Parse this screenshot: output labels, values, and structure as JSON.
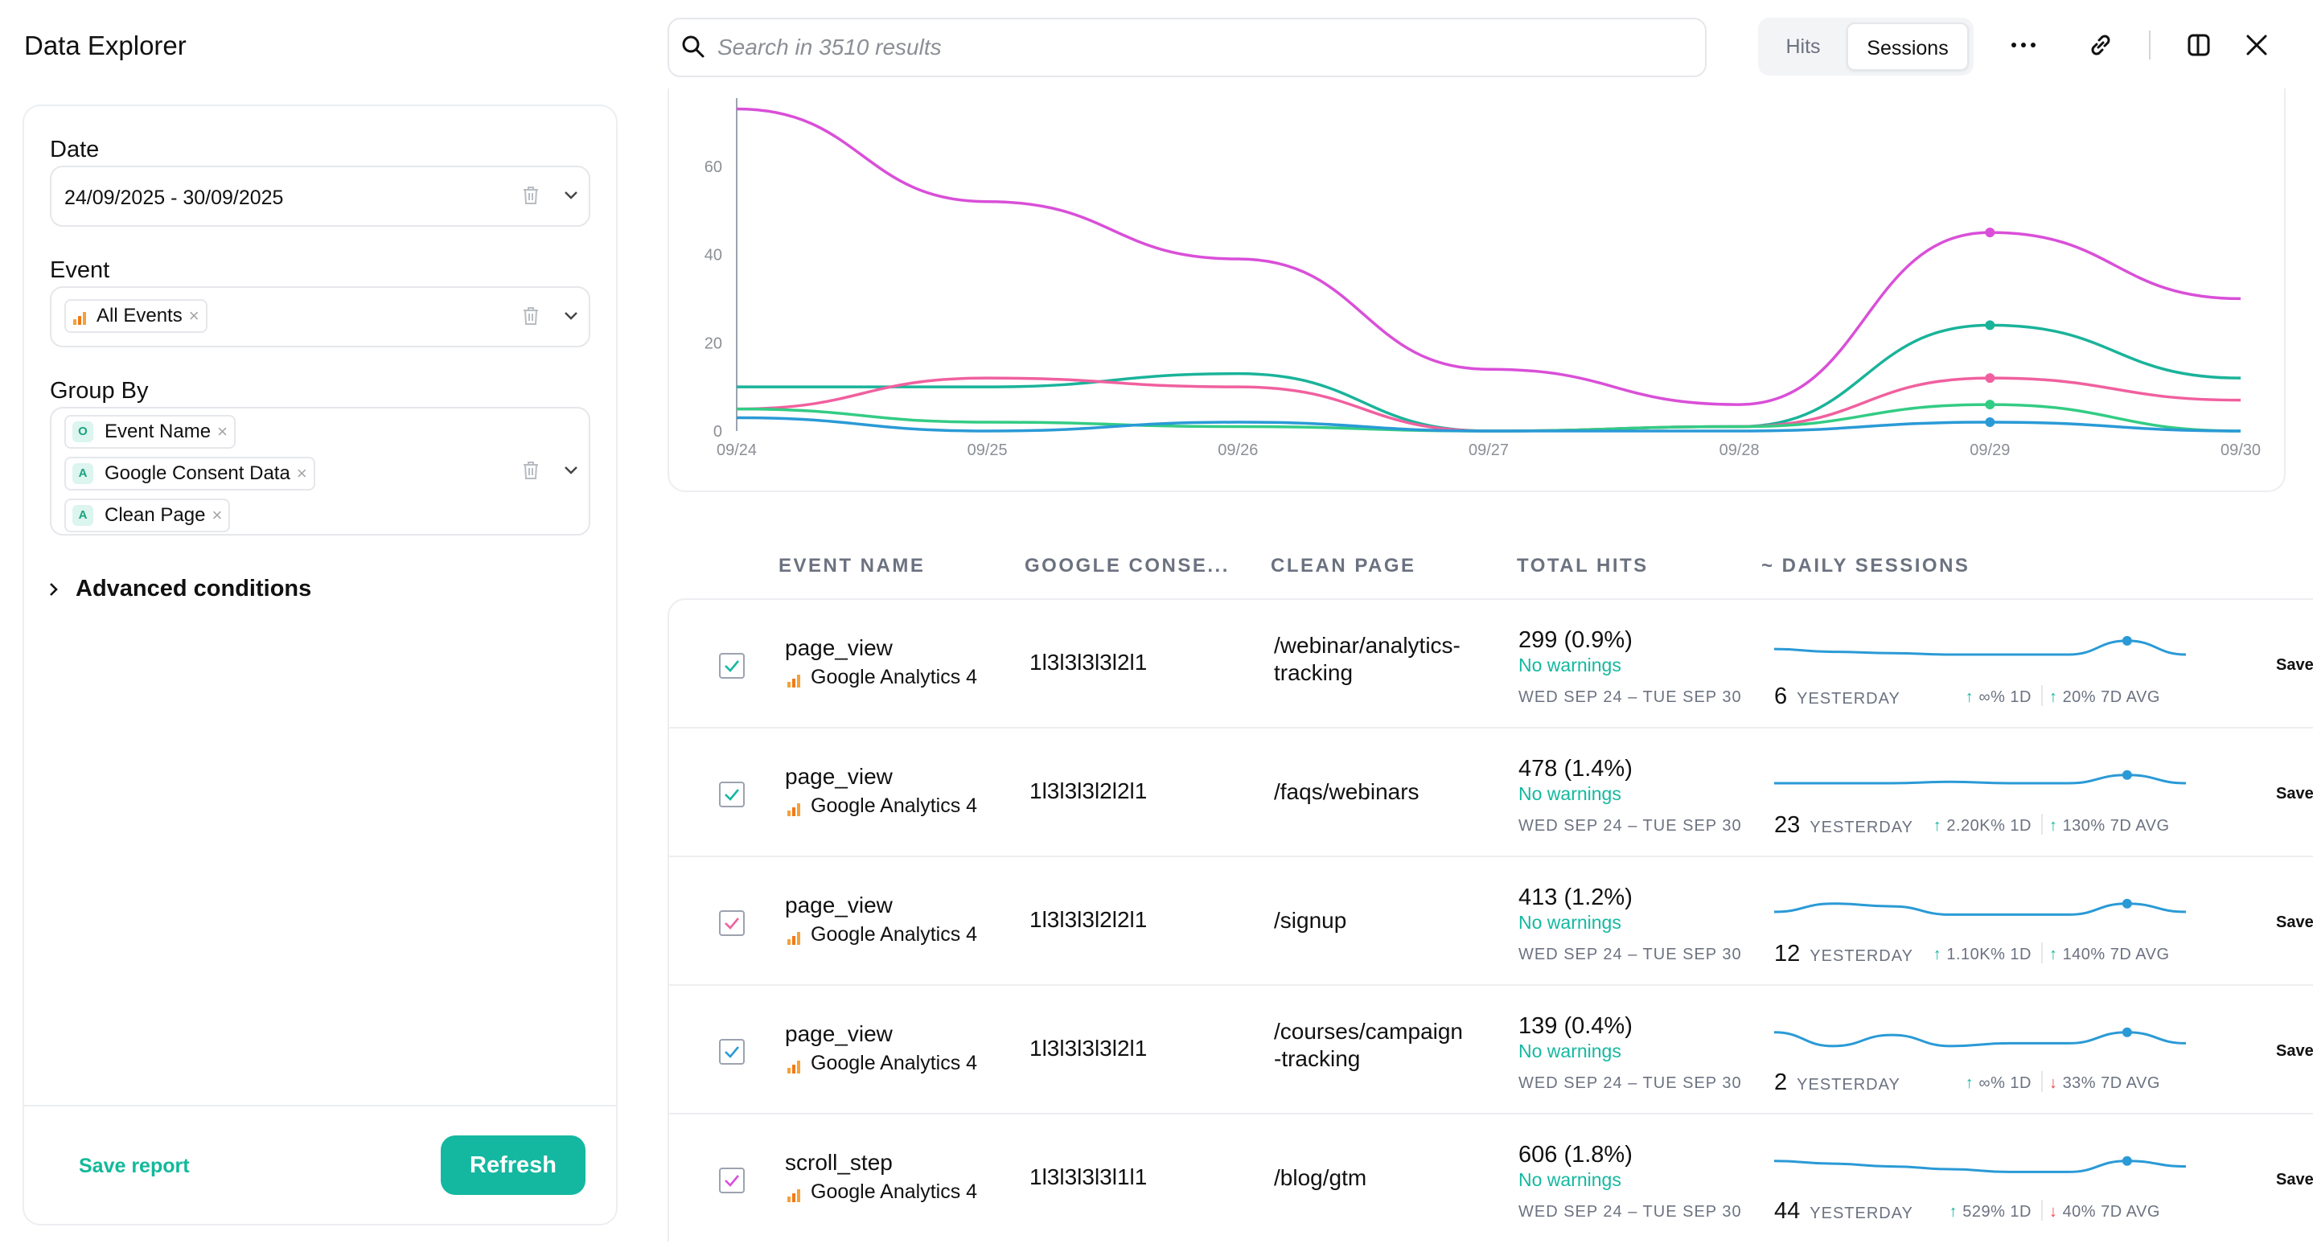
{
  "app": {
    "title": "Data Explorer"
  },
  "search": {
    "placeholder": "Search in 3510 results"
  },
  "view_toggle": {
    "options": [
      "Hits",
      "Sessions"
    ],
    "selected": "Sessions"
  },
  "header_icons": [
    "more-horizontal-icon",
    "link-icon",
    "split-panel-icon",
    "close-icon"
  ],
  "sidebar": {
    "date": {
      "label": "Date",
      "value": "24/09/2025 - 30/09/2025"
    },
    "event": {
      "label": "Event",
      "chips": [
        {
          "label": "All Events",
          "icon": "ga-bars-icon"
        }
      ]
    },
    "group_by": {
      "label": "Group By",
      "chips": [
        {
          "badge": "O",
          "label": "Event Name"
        },
        {
          "badge": "A",
          "label": "Google Consent Data"
        },
        {
          "badge": "A",
          "label": "Clean Page"
        }
      ]
    },
    "advanced": {
      "label": "Advanced conditions"
    },
    "save_report": "Save report",
    "refresh": "Refresh"
  },
  "chart_data": {
    "type": "line",
    "x": [
      "09/24",
      "09/25",
      "09/26",
      "09/27",
      "09/28",
      "09/29",
      "09/30"
    ],
    "ylim": [
      0,
      74
    ],
    "yticks": [
      0,
      20,
      40,
      60
    ],
    "grid": false,
    "series": [
      {
        "color": "#d94fd8",
        "values": [
          73,
          52,
          39,
          14,
          6,
          45,
          30
        ]
      },
      {
        "color": "#1ab39a",
        "values": [
          10,
          10,
          13,
          0,
          1,
          24,
          12
        ]
      },
      {
        "color": "#f0609f",
        "values": [
          5,
          12,
          10,
          0,
          1,
          12,
          7
        ]
      },
      {
        "color": "#33cc84",
        "values": [
          5,
          2,
          1,
          0,
          1,
          6,
          0
        ]
      },
      {
        "color": "#2a9ad6",
        "values": [
          3,
          0,
          2,
          0,
          0,
          2,
          0
        ]
      }
    ]
  },
  "table": {
    "headers": [
      "EVENT NAME",
      "GOOGLE CONSE...",
      "CLEAN PAGE",
      "TOTAL HITS",
      "~ DAILY SESSIONS"
    ],
    "rows": [
      {
        "event": "page_view",
        "source": "Google Analytics 4",
        "consent": "1l3l3l3l3l2l1",
        "page": "/webinar/analytics-tracking",
        "page_lines": [
          "/webinar/analytics-",
          "tracking"
        ],
        "hits": "299 (0.9%)",
        "warnings": "No warnings",
        "range": "WED SEP 24 – TUE SEP 30",
        "yesterday": "6",
        "yesterday_label": "YESTERDAY",
        "d1": "∞% 1D",
        "d1_dir": "up",
        "d7": "20% 7D AVG",
        "d7_dir": "up",
        "checkbox_color": "#14b8a0",
        "spark": [
          9,
          8,
          7.5,
          7,
          7,
          7,
          12,
          7
        ],
        "save": "Save"
      },
      {
        "event": "page_view",
        "source": "Google Analytics 4",
        "consent": "1l3l3l3l2l2l1",
        "page": "/faqs/webinars",
        "page_lines": [
          "/faqs/webinars"
        ],
        "hits": "478 (1.4%)",
        "warnings": "No warnings",
        "range": "WED SEP 24 – TUE SEP 30",
        "yesterday": "23",
        "yesterday_label": "YESTERDAY",
        "d1": "2.20K% 1D",
        "d1_dir": "up",
        "d7": "130% 7D AVG",
        "d7_dir": "up",
        "checkbox_color": "#14b8a0",
        "spark": [
          7,
          7,
          7,
          7.5,
          7,
          7,
          10,
          7
        ],
        "save": "Save"
      },
      {
        "event": "page_view",
        "source": "Google Analytics 4",
        "consent": "1l3l3l3l2l2l1",
        "page": "/signup",
        "page_lines": [
          "/signup"
        ],
        "hits": "413 (1.2%)",
        "warnings": "No warnings",
        "range": "WED SEP 24 – TUE SEP 30",
        "yesterday": "12",
        "yesterday_label": "YESTERDAY",
        "d1": "1.10K% 1D",
        "d1_dir": "up",
        "d7": "140% 7D AVG",
        "d7_dir": "up",
        "checkbox_color": "#f0609f",
        "spark": [
          7,
          10,
          9,
          6,
          6,
          6,
          10,
          7
        ],
        "save": "Save"
      },
      {
        "event": "page_view",
        "source": "Google Analytics 4",
        "consent": "1l3l3l3l3l2l1",
        "page": "/courses/campaign-tracking",
        "page_lines": [
          "/courses/campaign",
          "-tracking"
        ],
        "hits": "139 (0.4%)",
        "warnings": "No warnings",
        "range": "WED SEP 24 – TUE SEP 30",
        "yesterday": "2",
        "yesterday_label": "YESTERDAY",
        "d1": "∞% 1D",
        "d1_dir": "up",
        "d7": "33% 7D AVG",
        "d7_dir": "down",
        "checkbox_color": "#2a9ad6",
        "spark": [
          10,
          5,
          9,
          5,
          6,
          6,
          10,
          6
        ],
        "save": "Save"
      },
      {
        "event": "scroll_step",
        "source": "Google Analytics 4",
        "consent": "1l3l3l3l3l1l1",
        "page": "/blog/gtm",
        "page_lines": [
          "/blog/gtm"
        ],
        "hits": "606 (1.8%)",
        "warnings": "No warnings",
        "range": "WED SEP 24 – TUE SEP 30",
        "yesterday": "44",
        "yesterday_label": "YESTERDAY",
        "d1": "529% 1D",
        "d1_dir": "up",
        "d7": "40% 7D AVG",
        "d7_dir": "down",
        "checkbox_color": "#d94fd8",
        "spark": [
          10,
          9,
          8,
          7,
          6,
          6,
          10,
          8
        ],
        "save": "Save"
      }
    ]
  },
  "colors": {
    "accent": "#14b8a0",
    "warning_ok": "#14b8a0",
    "down": "#ef4444",
    "spark": "#2a9ad6"
  }
}
